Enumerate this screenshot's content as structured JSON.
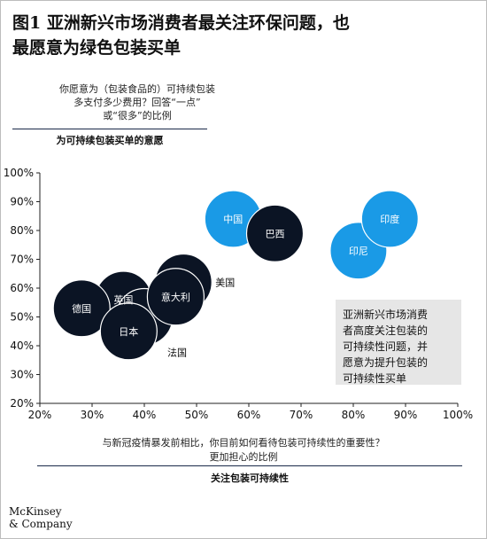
{
  "title": {
    "line1": "图1 亚洲新兴市场消费者最关注环保问题，也",
    "line2": "最愿意为绿色包装买单"
  },
  "y_question": {
    "line1": "你愿意为（包装食品的）可持续包装",
    "line2": "多支付多少费用？回答“一点”",
    "line3": "或“很多”的比例"
  },
  "x_question": {
    "line1": "与新冠疫情暴发前相比，你目前如何看待包装可持续性的重要性？",
    "line2": "更加担心的比例"
  },
  "callout": {
    "line1": "亚洲新兴市场消费",
    "line2": "者高度关注包装的",
    "line3": "可持续性问题，并",
    "line4": "愿意为提升包装的",
    "line5": "可持续性买单"
  },
  "logo": {
    "line1": "McKinsey",
    "line2": "& Company"
  },
  "colors": {
    "dark": "#0b1424",
    "accent": "#1a9ae6",
    "text": "#111111"
  },
  "chart_data": {
    "type": "scatter",
    "xlabel": "关注包装可持续性",
    "ylabel": "为可持续包装买单的意愿",
    "xlim": [
      20,
      100
    ],
    "ylim": [
      20,
      100
    ],
    "x_ticks": [
      "20%",
      "30%",
      "40%",
      "50%",
      "60%",
      "70%",
      "80%",
      "90%",
      "100%"
    ],
    "y_ticks": [
      "20%",
      "30%",
      "40%",
      "50%",
      "60%",
      "70%",
      "80%",
      "90%",
      "100%"
    ],
    "grid": false,
    "points": [
      {
        "label": "美国",
        "x": 47.5,
        "y": 62,
        "color": "dark",
        "label_pos": "right"
      },
      {
        "label": "英国",
        "x": 36,
        "y": 56,
        "color": "dark",
        "label_pos": "center"
      },
      {
        "label": "德国",
        "x": 28,
        "y": 53,
        "color": "dark",
        "label_pos": "center"
      },
      {
        "label": "法国",
        "x": 40,
        "y": 50,
        "color": "dark",
        "label_pos": "below-right"
      },
      {
        "label": "日本",
        "x": 37,
        "y": 45,
        "color": "dark",
        "label_pos": "center"
      },
      {
        "label": "意大利",
        "x": 46,
        "y": 57,
        "color": "dark",
        "label_pos": "center"
      },
      {
        "label": "中国",
        "x": 57,
        "y": 84,
        "color": "accent",
        "label_pos": "center"
      },
      {
        "label": "巴西",
        "x": 65,
        "y": 79,
        "color": "dark",
        "label_pos": "center"
      },
      {
        "label": "印尼",
        "x": 81,
        "y": 73,
        "color": "accent",
        "label_pos": "center"
      },
      {
        "label": "印度",
        "x": 87,
        "y": 84,
        "color": "accent",
        "label_pos": "center"
      }
    ]
  }
}
